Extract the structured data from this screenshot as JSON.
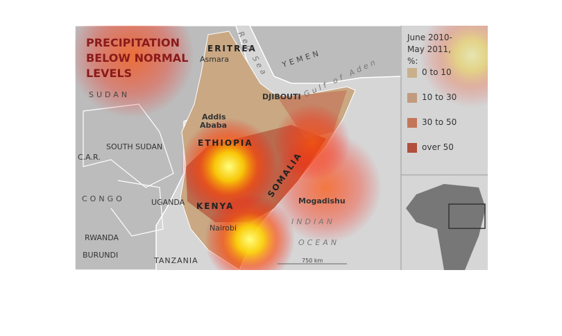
{
  "title": "PRECIPITATION BELOW NORMAL LEVELS",
  "legend": {
    "title": "June 2010-May 2011, %:",
    "items": [
      {
        "label": "0 to 10",
        "color": "#c9b08a"
      },
      {
        "label": "10 to 30",
        "color": "#c29a7e"
      },
      {
        "label": "30 to 50",
        "color": "#c4765a"
      },
      {
        "label": "over 50",
        "color": "#b14f3c"
      }
    ]
  },
  "labels": [
    "ERITREA",
    "Asmara",
    "Red Sea",
    "YEMEN",
    "Gulf of Aden",
    "DJIBOUTI",
    "SUDAN",
    "Addis",
    "Ababa",
    "ETHIOPIA",
    "SOUTH SUDAN",
    "C.A.R.",
    "SOMALIA",
    "CONGO",
    "UGANDA",
    "KENYA",
    "Mogadishu",
    "Nairobi",
    "INDIAN",
    "OCEAN",
    "RWANDA",
    "BURUNDI",
    "TANZANIA",
    "750 km"
  ]
}
